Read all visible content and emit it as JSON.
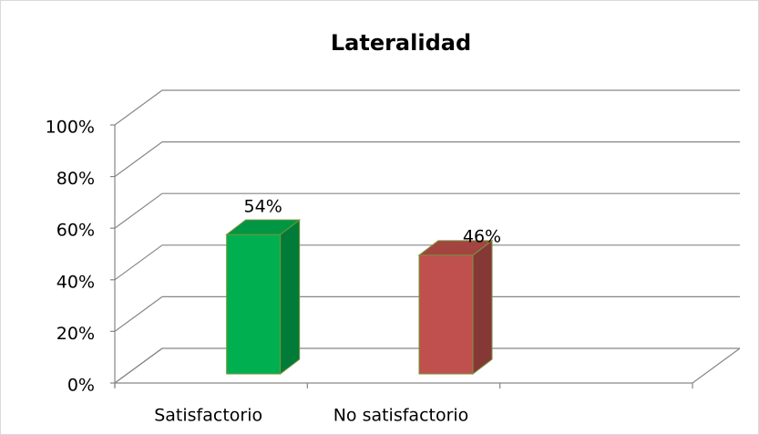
{
  "chart_data": {
    "type": "bar3d",
    "title": "Lateralidad",
    "categories": [
      "Satisfactorio",
      "No satisfactorio",
      null
    ],
    "values": [
      54,
      46,
      null
    ],
    "value_labels": [
      "54%",
      "46%",
      null
    ],
    "colors": [
      "#00b050",
      "#c0504d",
      null
    ],
    "ylim": [
      0,
      100
    ],
    "yticks": [
      {
        "value": 0,
        "label": "0%"
      },
      {
        "value": 20,
        "label": "20%"
      },
      {
        "value": 40,
        "label": "40%"
      },
      {
        "value": 60,
        "label": "60%"
      },
      {
        "value": 80,
        "label": "80%"
      },
      {
        "value": 100,
        "label": "100%"
      }
    ],
    "grid": true
  }
}
